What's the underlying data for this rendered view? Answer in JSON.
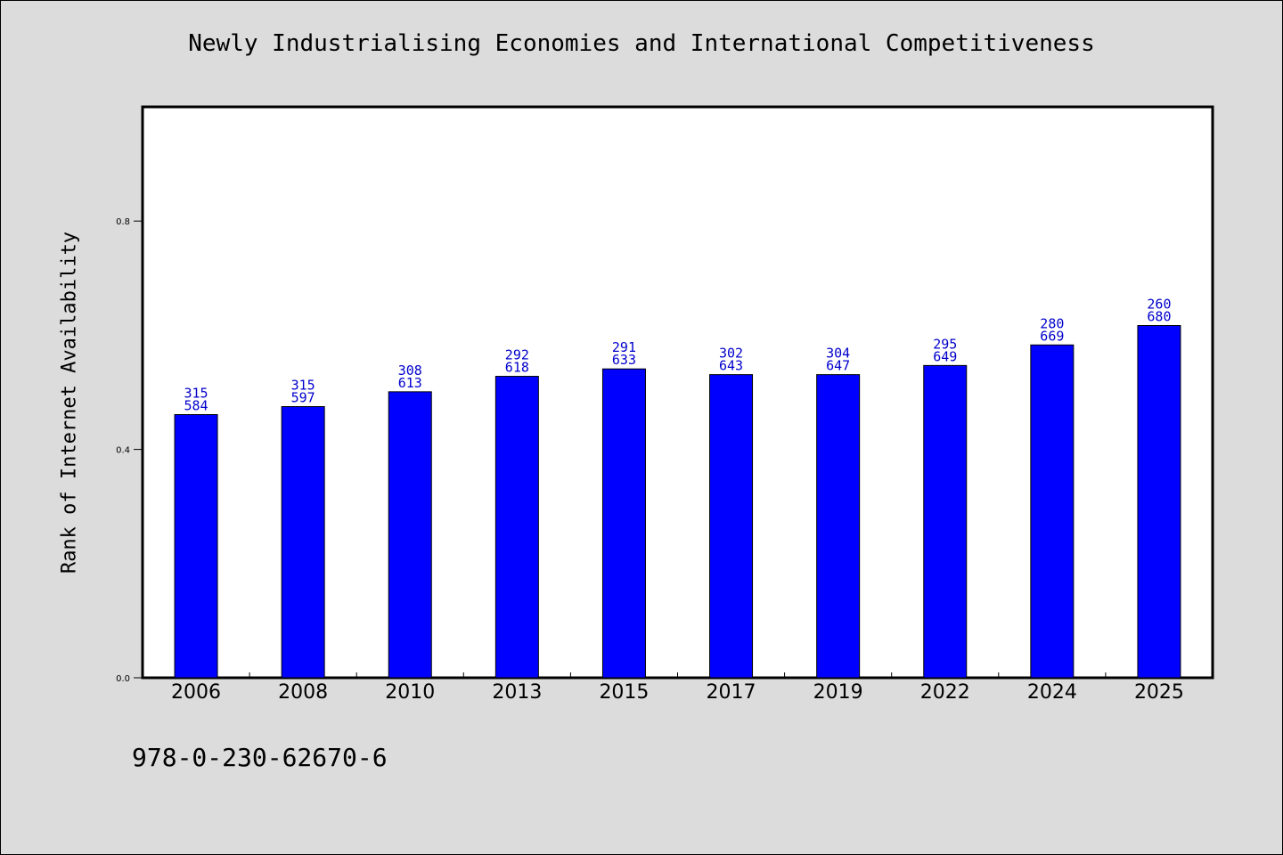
{
  "colors": {
    "background": "#dcdcdc",
    "plot_area": "#ffffff",
    "bar_fill": "#0000ff",
    "bar_label": "#0000cc"
  },
  "footer": {
    "isbn": "978-0-230-62670-6"
  },
  "chart_data": {
    "type": "bar",
    "title": "Newly Industrialising Economies and International Competitiveness",
    "xlabel": "",
    "ylabel": "Rank of Internet Availability",
    "ylim": [
      0,
      1.0
    ],
    "yticks": [
      "0.0",
      "0.4",
      "0.8"
    ],
    "categories": [
      "2006",
      "2008",
      "2010",
      "2013",
      "2015",
      "2017",
      "2019",
      "2022",
      "2024",
      "2025"
    ],
    "values": [
      0.461,
      0.475,
      0.501,
      0.528,
      0.541,
      0.531,
      0.531,
      0.547,
      0.583,
      0.617
    ],
    "annotations": [
      [
        "315",
        "584"
      ],
      [
        "315",
        "597"
      ],
      [
        "308",
        "613"
      ],
      [
        "292",
        "618"
      ],
      [
        "291",
        "633"
      ],
      [
        "302",
        "643"
      ],
      [
        "304",
        "647"
      ],
      [
        "295",
        "649"
      ],
      [
        "280",
        "669"
      ],
      [
        "260",
        "680"
      ]
    ],
    "grid": false,
    "legend": "none"
  }
}
